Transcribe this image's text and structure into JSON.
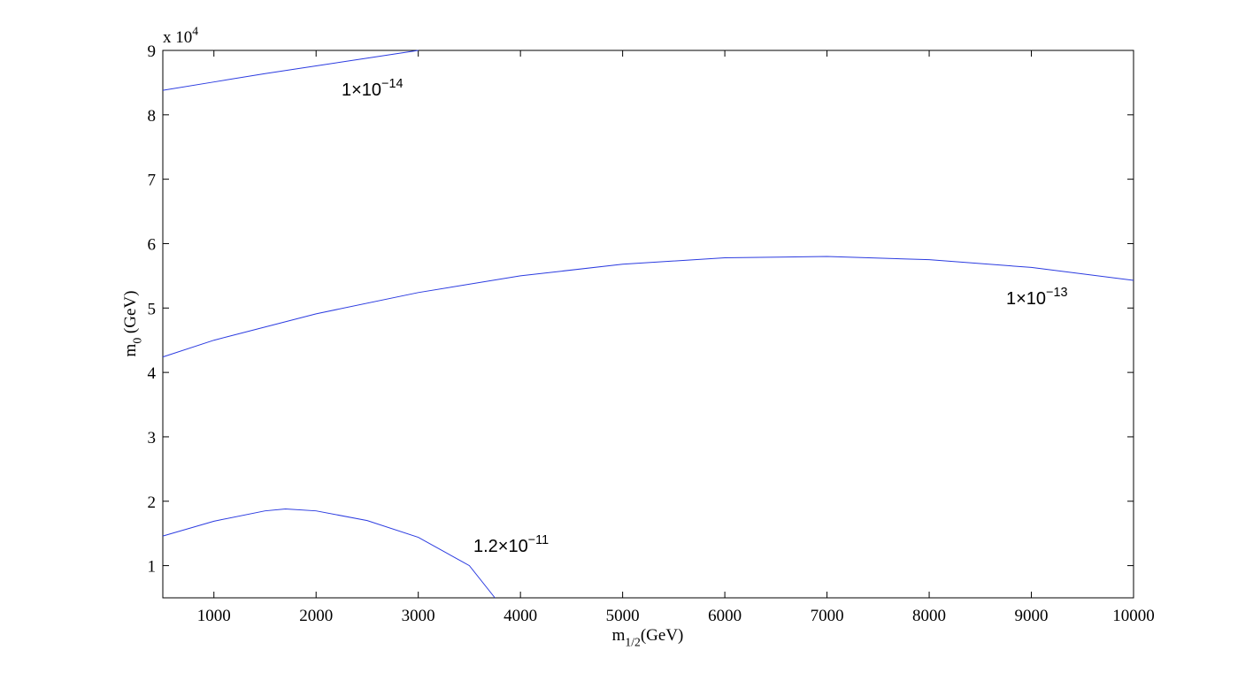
{
  "chart_data": {
    "type": "line",
    "xlabel": [
      {
        "text": "m"
      },
      {
        "text": "1/2",
        "sub": true
      },
      {
        "text": "(GeV)"
      }
    ],
    "ylabel": [
      {
        "text": "m"
      },
      {
        "text": "0",
        "sub": true
      },
      {
        "text": " (GeV)"
      }
    ],
    "y_multiplier": [
      {
        "text": "x 10"
      },
      {
        "text": "4",
        "sup": true
      }
    ],
    "xlim": [
      500,
      10000
    ],
    "xticks": [
      1000,
      2000,
      3000,
      4000,
      5000,
      6000,
      7000,
      8000,
      9000,
      10000
    ],
    "ylim": [
      0.5,
      9
    ],
    "yticks": [
      1,
      2,
      3,
      4,
      5,
      6,
      7,
      8,
      9
    ],
    "series": [
      {
        "name": [
          {
            "text": "1×10"
          },
          {
            "text": "−14",
            "sup": true
          }
        ],
        "color": "#2b3be0",
        "x": [
          500,
          1000,
          1500,
          2000,
          2500,
          3000
        ],
        "values": [
          8.38,
          8.51,
          8.64,
          8.76,
          8.88,
          9.0
        ]
      },
      {
        "name": [
          {
            "text": "1×10"
          },
          {
            "text": "−13",
            "sup": true
          }
        ],
        "color": "#2b3be0",
        "x": [
          500,
          1000,
          2000,
          3000,
          4000,
          5000,
          6000,
          7000,
          8000,
          9000,
          10000
        ],
        "values": [
          4.24,
          4.5,
          4.91,
          5.24,
          5.5,
          5.68,
          5.78,
          5.8,
          5.75,
          5.63,
          5.43
        ]
      },
      {
        "name": [
          {
            "text": "1.2×10"
          },
          {
            "text": "−11",
            "sup": true
          }
        ],
        "color": "#2b3be0",
        "x": [
          500,
          1000,
          1500,
          1700,
          2000,
          2500,
          3000,
          3500,
          3750
        ],
        "values": [
          1.46,
          1.69,
          1.85,
          1.88,
          1.85,
          1.7,
          1.44,
          1.0,
          0.5
        ]
      }
    ]
  }
}
